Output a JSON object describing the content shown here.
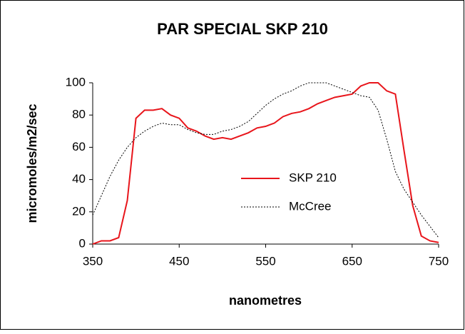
{
  "chart_data": {
    "type": "line",
    "title": "PAR SPECIAL SKP 210",
    "x_label": "nanometres",
    "y_label": "micromoles/m2/sec",
    "x": [
      350,
      360,
      370,
      380,
      390,
      400,
      410,
      420,
      430,
      440,
      450,
      460,
      470,
      480,
      490,
      500,
      510,
      520,
      530,
      540,
      550,
      560,
      570,
      580,
      590,
      600,
      610,
      620,
      630,
      640,
      650,
      660,
      670,
      680,
      690,
      700,
      710,
      720,
      730,
      740,
      750
    ],
    "series": [
      {
        "name": "SKP 210",
        "color": "#e8151b",
        "dash": "solid",
        "values": [
          0,
          2,
          2,
          4,
          27,
          78,
          83,
          83,
          84,
          80,
          78,
          72,
          70,
          67,
          65,
          66,
          65,
          67,
          69,
          72,
          73,
          75,
          79,
          81,
          82,
          84,
          87,
          89,
          91,
          92,
          93,
          98,
          100,
          100,
          95,
          93,
          58,
          24,
          5,
          2,
          1
        ]
      },
      {
        "name": "McCree",
        "color": "#000000",
        "dash": "dotted",
        "values": [
          18,
          30,
          42,
          52,
          60,
          66,
          70,
          73,
          75,
          74,
          74,
          71,
          69,
          68,
          68,
          70,
          71,
          73,
          76,
          81,
          86,
          90,
          93,
          95,
          98,
          100,
          100,
          100,
          98,
          96,
          94,
          92,
          91,
          83,
          65,
          45,
          34,
          26,
          18,
          11,
          4
        ]
      }
    ],
    "xlim": [
      350,
      750
    ],
    "xticks": [
      350,
      450,
      550,
      650,
      750
    ],
    "ylim": [
      0,
      100
    ],
    "yticks": [
      0,
      20,
      40,
      60,
      80,
      100
    ],
    "grid": false,
    "legend": "right"
  }
}
